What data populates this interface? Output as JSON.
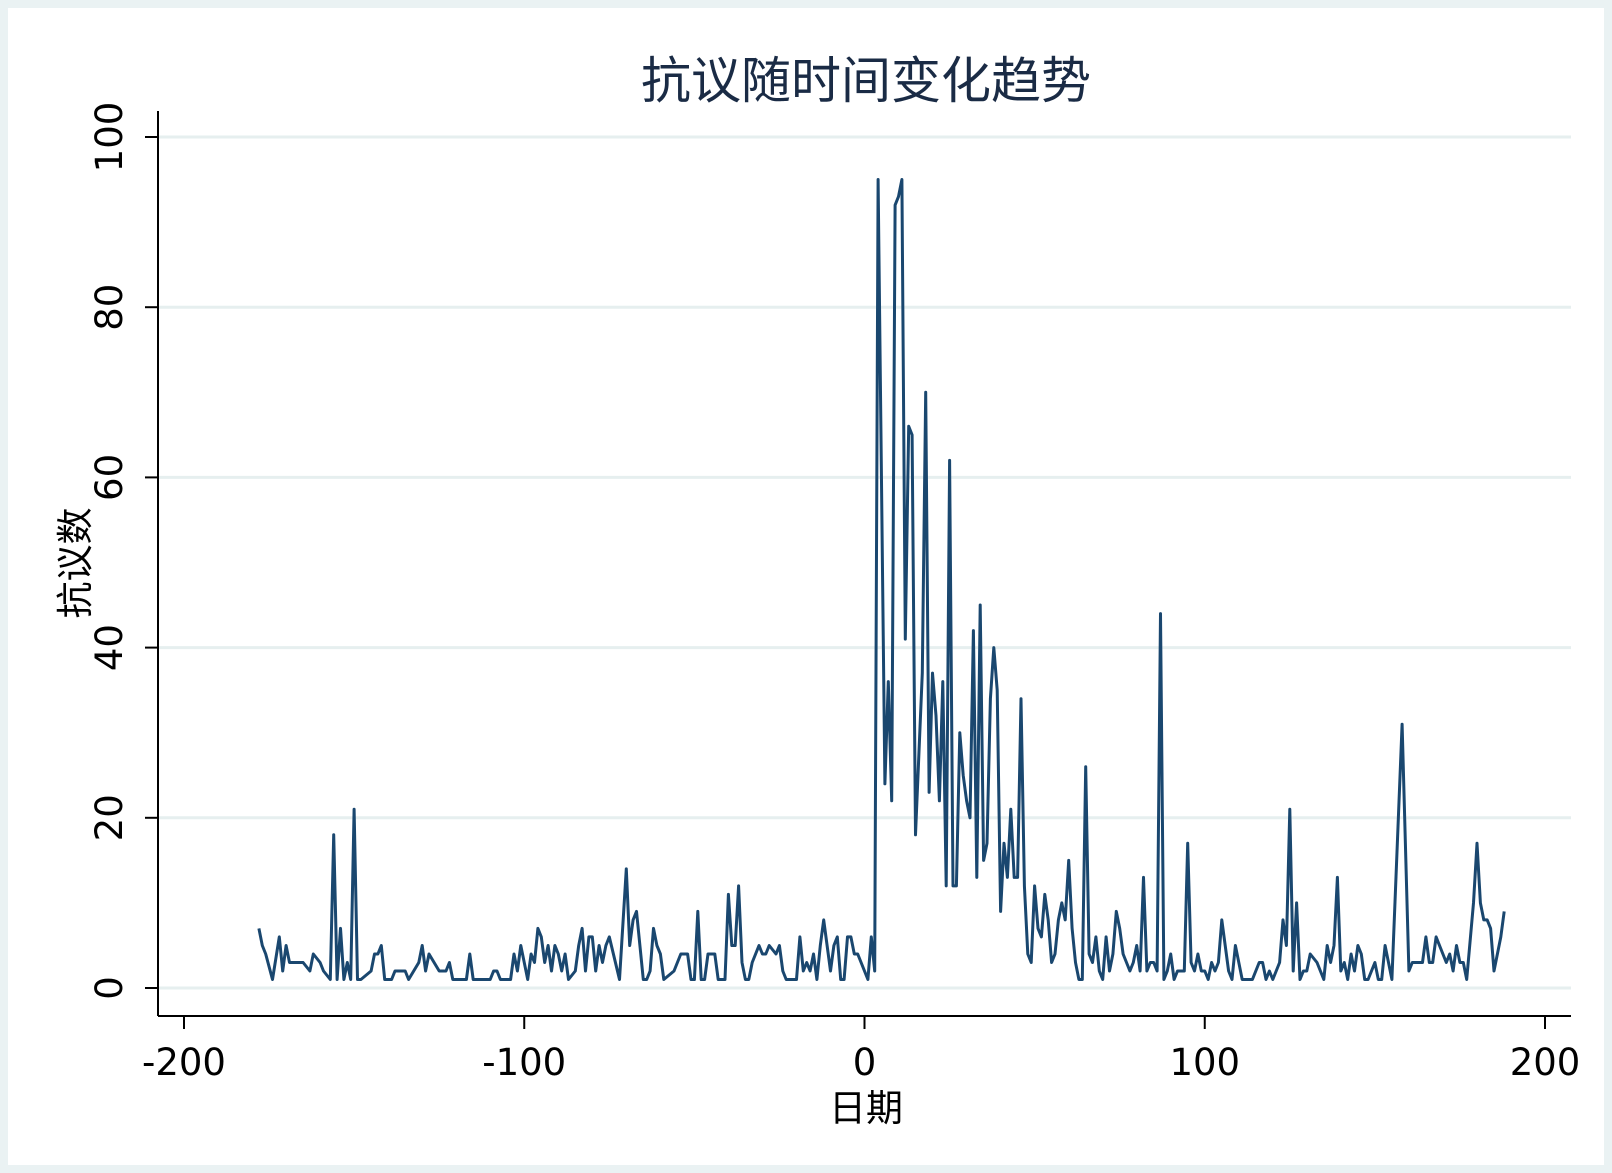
{
  "chart_data": {
    "type": "line",
    "title": "抗议随时间变化趋势",
    "xlabel": "日期",
    "ylabel": "抗议数",
    "xlim": [
      -207,
      208
    ],
    "ylim": [
      0,
      100
    ],
    "x_ticks": [
      -200,
      -100,
      0,
      100,
      200
    ],
    "y_ticks": [
      0,
      20,
      40,
      60,
      80,
      100
    ],
    "grid": true,
    "line_color": "#1a476f",
    "series": [
      {
        "points": [
          [
            -178,
            7
          ],
          [
            -177,
            5
          ],
          [
            -176,
            4
          ],
          [
            -174,
            1
          ],
          [
            -172,
            6
          ],
          [
            -171,
            2
          ],
          [
            -170,
            5
          ],
          [
            -169,
            3
          ],
          [
            -166,
            3
          ],
          [
            -165,
            3
          ],
          [
            -163,
            2
          ],
          [
            -162,
            4
          ],
          [
            -160,
            3
          ],
          [
            -159,
            2
          ],
          [
            -157,
            1
          ],
          [
            -156,
            18
          ],
          [
            -155,
            1
          ],
          [
            -154,
            7
          ],
          [
            -153,
            1
          ],
          [
            -152,
            3
          ],
          [
            -151,
            1
          ],
          [
            -150,
            21
          ],
          [
            -149,
            1
          ],
          [
            -148,
            1
          ],
          [
            -145,
            2
          ],
          [
            -144,
            4
          ],
          [
            -143,
            4
          ],
          [
            -142,
            5
          ],
          [
            -141,
            1
          ],
          [
            -139,
            1
          ],
          [
            -138,
            2
          ],
          [
            -135,
            2
          ],
          [
            -134,
            1
          ],
          [
            -131,
            3
          ],
          [
            -130,
            5
          ],
          [
            -129,
            2
          ],
          [
            -128,
            4
          ],
          [
            -125,
            2
          ],
          [
            -123,
            2
          ],
          [
            -122,
            3
          ],
          [
            -121,
            1
          ],
          [
            -120,
            1
          ],
          [
            -117,
            1
          ],
          [
            -116,
            4
          ],
          [
            -115,
            1
          ],
          [
            -110,
            1
          ],
          [
            -109,
            2
          ],
          [
            -108,
            2
          ],
          [
            -107,
            1
          ],
          [
            -104,
            1
          ],
          [
            -103,
            4
          ],
          [
            -102,
            2
          ],
          [
            -101,
            5
          ],
          [
            -99,
            1
          ],
          [
            -98,
            4
          ],
          [
            -97,
            3
          ],
          [
            -96,
            7
          ],
          [
            -95,
            6
          ],
          [
            -94,
            3
          ],
          [
            -93,
            5
          ],
          [
            -92,
            2
          ],
          [
            -91,
            5
          ],
          [
            -90,
            4
          ],
          [
            -89,
            2
          ],
          [
            -88,
            4
          ],
          [
            -87,
            1
          ],
          [
            -85,
            2
          ],
          [
            -84,
            5
          ],
          [
            -83,
            7
          ],
          [
            -82,
            2
          ],
          [
            -81,
            6
          ],
          [
            -80,
            6
          ],
          [
            -79,
            2
          ],
          [
            -78,
            5
          ],
          [
            -77,
            3
          ],
          [
            -76,
            5
          ],
          [
            -75,
            6
          ],
          [
            -72,
            1
          ],
          [
            -70,
            14
          ],
          [
            -69,
            5
          ],
          [
            -68,
            8
          ],
          [
            -67,
            9
          ],
          [
            -65,
            1
          ],
          [
            -64,
            1
          ],
          [
            -63,
            2
          ],
          [
            -62,
            7
          ],
          [
            -61,
            5
          ],
          [
            -60,
            4
          ],
          [
            -59,
            1
          ],
          [
            -56,
            2
          ],
          [
            -55,
            3
          ],
          [
            -54,
            4
          ],
          [
            -52,
            4
          ],
          [
            -51,
            1
          ],
          [
            -50,
            1
          ],
          [
            -49,
            9
          ],
          [
            -48,
            1
          ],
          [
            -47,
            1
          ],
          [
            -46,
            4
          ],
          [
            -44,
            4
          ],
          [
            -43,
            1
          ],
          [
            -41,
            1
          ],
          [
            -40,
            11
          ],
          [
            -39,
            5
          ],
          [
            -38,
            5
          ],
          [
            -37,
            12
          ],
          [
            -36,
            3
          ],
          [
            -35,
            1
          ],
          [
            -34,
            1
          ],
          [
            -33,
            3
          ],
          [
            -31,
            5
          ],
          [
            -30,
            4
          ],
          [
            -29,
            4
          ],
          [
            -28,
            5
          ],
          [
            -26,
            4
          ],
          [
            -25,
            5
          ],
          [
            -24,
            2
          ],
          [
            -23,
            1
          ],
          [
            -20,
            1
          ],
          [
            -19,
            6
          ],
          [
            -18,
            2
          ],
          [
            -17,
            3
          ],
          [
            -16,
            2
          ],
          [
            -15,
            4
          ],
          [
            -14,
            1
          ],
          [
            -13,
            5
          ],
          [
            -12,
            8
          ],
          [
            -11,
            5
          ],
          [
            -10,
            2
          ],
          [
            -9,
            5
          ],
          [
            -8,
            6
          ],
          [
            -7,
            1
          ],
          [
            -6,
            1
          ],
          [
            -5,
            6
          ],
          [
            -4,
            6
          ],
          [
            -3,
            4
          ],
          [
            -2,
            4
          ],
          [
            -1,
            3
          ],
          [
            1,
            1
          ],
          [
            2,
            6
          ],
          [
            3,
            2
          ],
          [
            4,
            95
          ],
          [
            6,
            24
          ],
          [
            7,
            36
          ],
          [
            8,
            22
          ],
          [
            9,
            92
          ],
          [
            10,
            93
          ],
          [
            11,
            95
          ],
          [
            12,
            41
          ],
          [
            13,
            66
          ],
          [
            14,
            65
          ],
          [
            15,
            18
          ],
          [
            17,
            37
          ],
          [
            18,
            70
          ],
          [
            19,
            23
          ],
          [
            20,
            37
          ],
          [
            21,
            32
          ],
          [
            22,
            22
          ],
          [
            23,
            36
          ],
          [
            24,
            12
          ],
          [
            25,
            62
          ],
          [
            26,
            12
          ],
          [
            27,
            12
          ],
          [
            28,
            30
          ],
          [
            29,
            25
          ],
          [
            30,
            22
          ],
          [
            31,
            20
          ],
          [
            32,
            42
          ],
          [
            33,
            13
          ],
          [
            34,
            45
          ],
          [
            35,
            15
          ],
          [
            36,
            17
          ],
          [
            37,
            34
          ],
          [
            38,
            40
          ],
          [
            39,
            35
          ],
          [
            40,
            9
          ],
          [
            41,
            17
          ],
          [
            42,
            13
          ],
          [
            43,
            21
          ],
          [
            44,
            13
          ],
          [
            45,
            13
          ],
          [
            46,
            34
          ],
          [
            47,
            12
          ],
          [
            48,
            4
          ],
          [
            49,
            3
          ],
          [
            50,
            12
          ],
          [
            51,
            7
          ],
          [
            52,
            6
          ],
          [
            53,
            11
          ],
          [
            54,
            8
          ],
          [
            55,
            3
          ],
          [
            56,
            4
          ],
          [
            57,
            8
          ],
          [
            58,
            10
          ],
          [
            59,
            8
          ],
          [
            60,
            15
          ],
          [
            61,
            7
          ],
          [
            62,
            3
          ],
          [
            63,
            1
          ],
          [
            64,
            1
          ],
          [
            65,
            26
          ],
          [
            66,
            4
          ],
          [
            67,
            3
          ],
          [
            68,
            6
          ],
          [
            69,
            2
          ],
          [
            70,
            1
          ],
          [
            71,
            6
          ],
          [
            72,
            2
          ],
          [
            73,
            4
          ],
          [
            74,
            9
          ],
          [
            75,
            7
          ],
          [
            76,
            4
          ],
          [
            77,
            3
          ],
          [
            78,
            2
          ],
          [
            79,
            3
          ],
          [
            80,
            5
          ],
          [
            81,
            2
          ],
          [
            82,
            13
          ],
          [
            83,
            2
          ],
          [
            84,
            3
          ],
          [
            85,
            3
          ],
          [
            86,
            2
          ],
          [
            87,
            44
          ],
          [
            88,
            1
          ],
          [
            89,
            2
          ],
          [
            90,
            4
          ],
          [
            91,
            1
          ],
          [
            92,
            2
          ],
          [
            94,
            2
          ],
          [
            95,
            17
          ],
          [
            96,
            3
          ],
          [
            97,
            2
          ],
          [
            98,
            4
          ],
          [
            99,
            2
          ],
          [
            100,
            2
          ],
          [
            101,
            1
          ],
          [
            102,
            3
          ],
          [
            103,
            2
          ],
          [
            104,
            3
          ],
          [
            105,
            8
          ],
          [
            106,
            5
          ],
          [
            107,
            2
          ],
          [
            108,
            1
          ],
          [
            109,
            5
          ],
          [
            110,
            3
          ],
          [
            111,
            1
          ],
          [
            112,
            1
          ],
          [
            114,
            1
          ],
          [
            115,
            2
          ],
          [
            116,
            3
          ],
          [
            117,
            3
          ],
          [
            118,
            1
          ],
          [
            119,
            2
          ],
          [
            120,
            1
          ],
          [
            121,
            2
          ],
          [
            122,
            3
          ],
          [
            123,
            8
          ],
          [
            124,
            5
          ],
          [
            125,
            21
          ],
          [
            126,
            2
          ],
          [
            127,
            10
          ],
          [
            128,
            1
          ],
          [
            129,
            2
          ],
          [
            130,
            2
          ],
          [
            131,
            4
          ],
          [
            133,
            3
          ],
          [
            134,
            2
          ],
          [
            135,
            1
          ],
          [
            136,
            5
          ],
          [
            137,
            3
          ],
          [
            138,
            5
          ],
          [
            139,
            13
          ],
          [
            140,
            2
          ],
          [
            141,
            3
          ],
          [
            142,
            1
          ],
          [
            143,
            4
          ],
          [
            144,
            2
          ],
          [
            145,
            5
          ],
          [
            146,
            4
          ],
          [
            147,
            1
          ],
          [
            148,
            1
          ],
          [
            150,
            3
          ],
          [
            151,
            1
          ],
          [
            152,
            1
          ],
          [
            153,
            5
          ],
          [
            154,
            3
          ],
          [
            155,
            1
          ],
          [
            158,
            31
          ],
          [
            160,
            2
          ],
          [
            161,
            3
          ],
          [
            163,
            3
          ],
          [
            164,
            3
          ],
          [
            165,
            6
          ],
          [
            166,
            3
          ],
          [
            167,
            3
          ],
          [
            168,
            6
          ],
          [
            170,
            4
          ],
          [
            171,
            3
          ],
          [
            172,
            4
          ],
          [
            173,
            2
          ],
          [
            174,
            5
          ],
          [
            175,
            3
          ],
          [
            176,
            3
          ],
          [
            177,
            1
          ],
          [
            179,
            10
          ],
          [
            180,
            17
          ],
          [
            181,
            10
          ],
          [
            182,
            8
          ],
          [
            183,
            8
          ],
          [
            184,
            7
          ],
          [
            185,
            2
          ],
          [
            187,
            6
          ],
          [
            188,
            9
          ]
        ]
      }
    ]
  }
}
